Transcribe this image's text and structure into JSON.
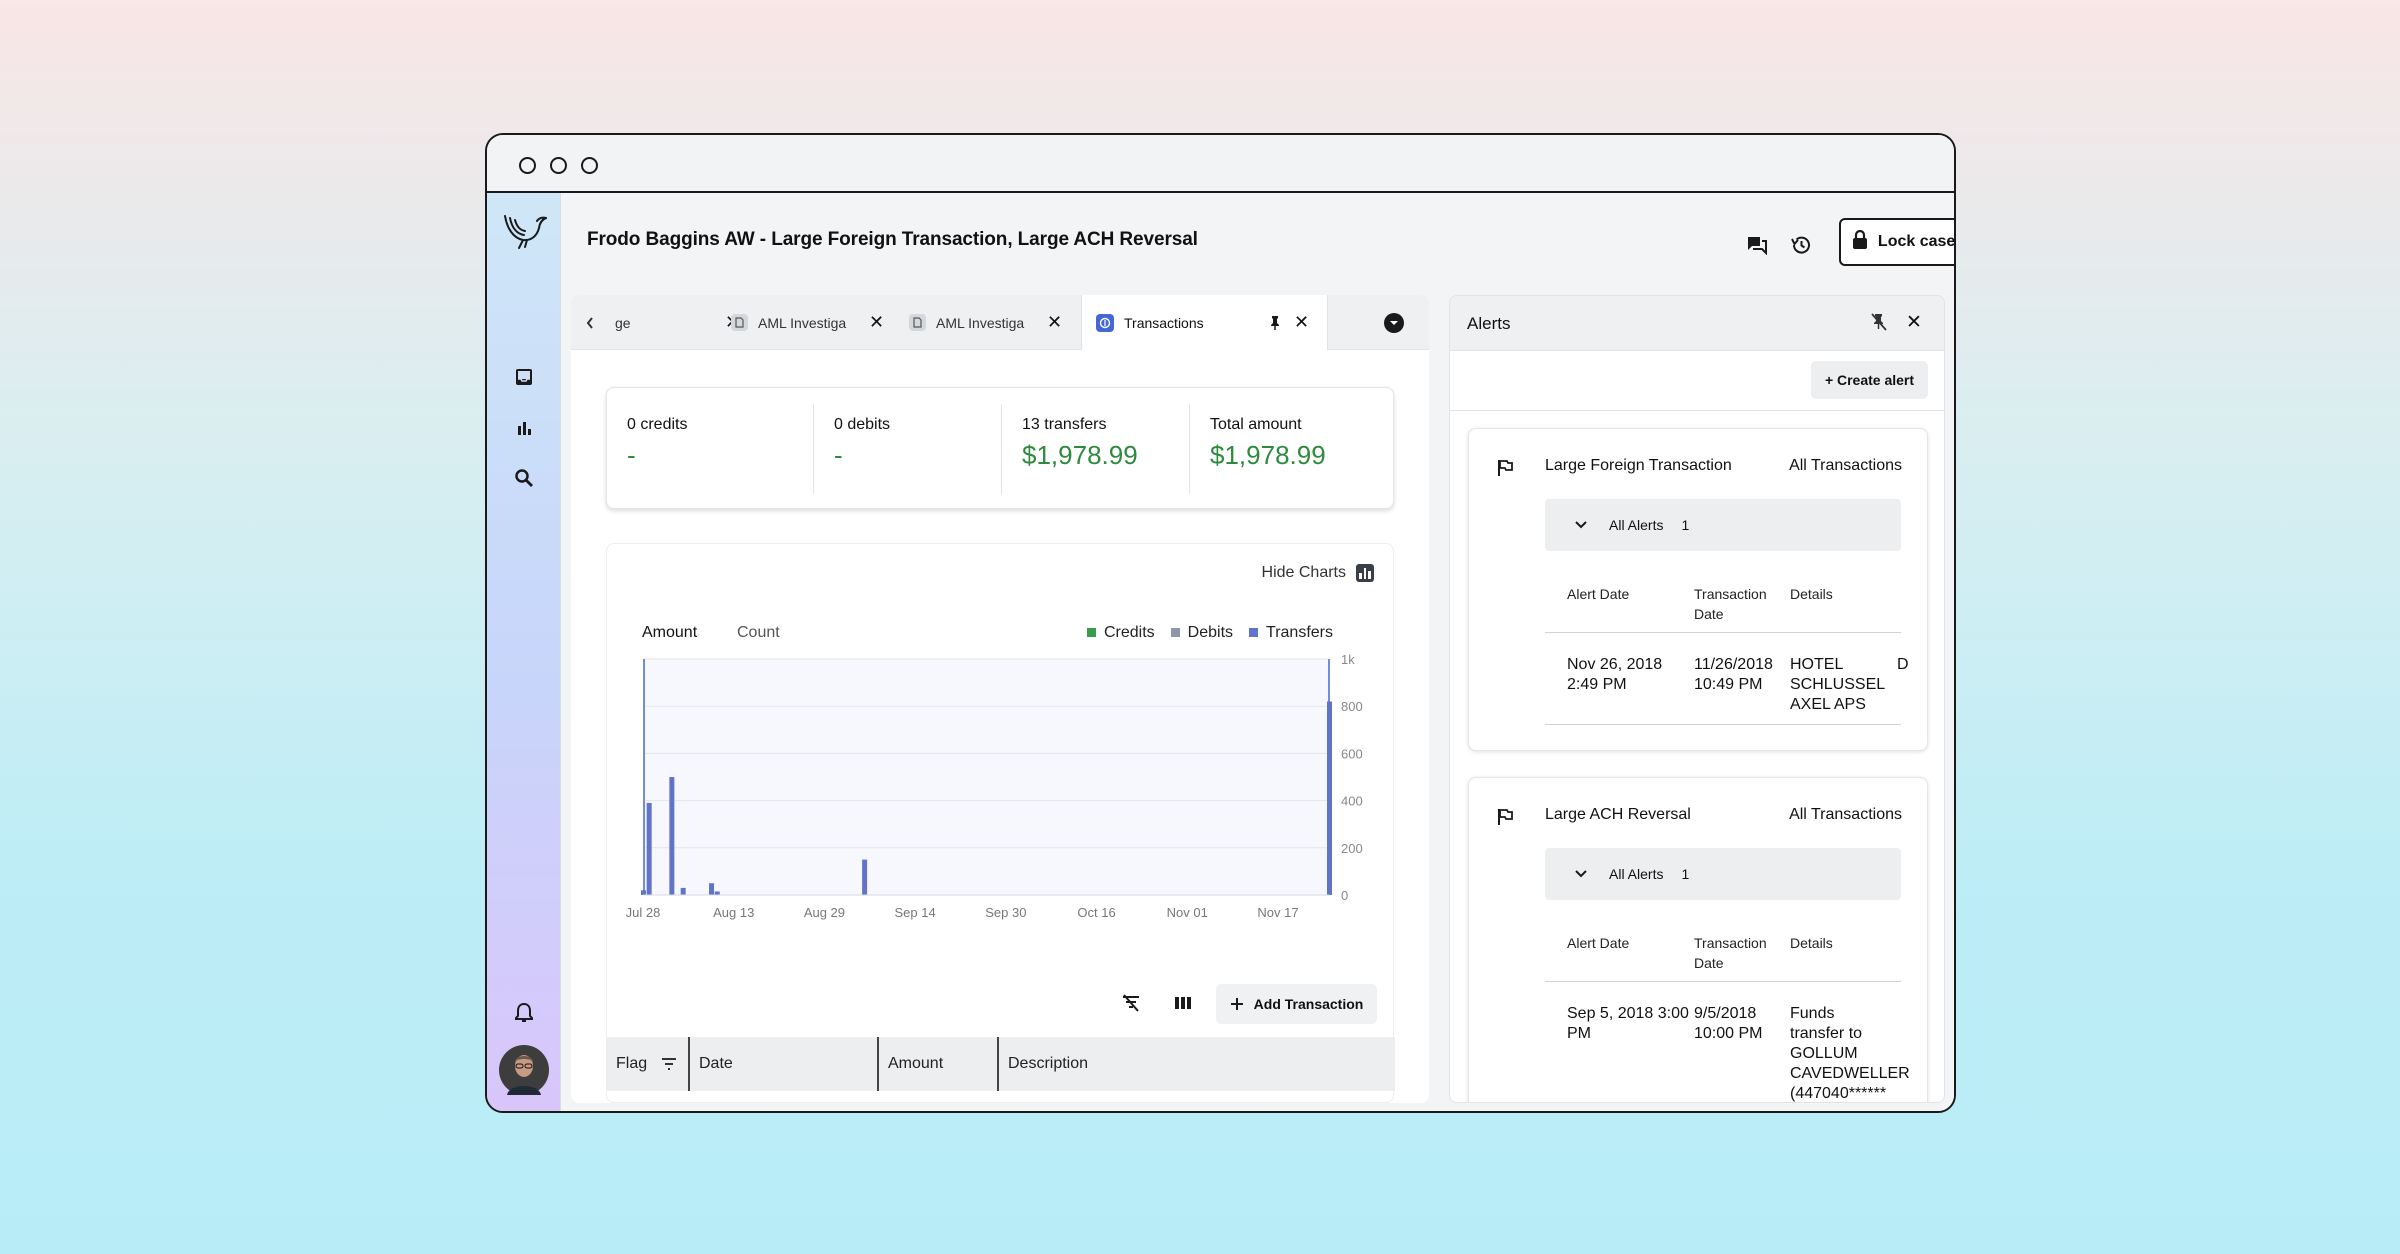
{
  "window": {
    "controls": [
      "close",
      "minimize",
      "maximize"
    ]
  },
  "sidebar": {
    "logo": "bird-logo-icon",
    "items": [
      {
        "icon": "inbox-icon",
        "name": "inbox"
      },
      {
        "icon": "bar-chart-icon",
        "name": "analytics"
      },
      {
        "icon": "search-icon",
        "name": "search"
      }
    ],
    "bottom": [
      {
        "icon": "bell-icon",
        "name": "notifications"
      },
      {
        "icon": "avatar",
        "name": "user-avatar"
      }
    ]
  },
  "header": {
    "title": "Frodo Baggins AW - Large Foreign Transaction, Large ACH Reversal",
    "lock_label": "Lock case info"
  },
  "tabs": [
    {
      "label": "ge",
      "icon": "",
      "active": false
    },
    {
      "label": "AML Investiga",
      "icon": "document-icon",
      "active": false
    },
    {
      "label": "AML Investiga",
      "icon": "document-icon",
      "active": false
    },
    {
      "label": "Transactions",
      "icon": "transactions-icon",
      "active": true
    }
  ],
  "summary": [
    {
      "label": "0 credits",
      "value": "-"
    },
    {
      "label": "0 debits",
      "value": "-"
    },
    {
      "label": "13 transfers",
      "value": "$1,978.99"
    },
    {
      "label": "Total amount",
      "value": "$1,978.99"
    }
  ],
  "chart_controls": {
    "hide_charts": "Hide Charts",
    "segments": [
      "Amount",
      "Count"
    ],
    "active_segment": "Amount"
  },
  "chart_data": {
    "type": "bar",
    "series": [
      {
        "name": "Credits",
        "color": "#3a9b4a",
        "points": []
      },
      {
        "name": "Debits",
        "color": "#8e98a6",
        "points": []
      },
      {
        "name": "Transfers",
        "color": "#6274c7",
        "points": [
          {
            "date": "Jul 28",
            "value": 20
          },
          {
            "date": "Jul 29",
            "value": 390
          },
          {
            "date": "Aug 2",
            "value": 500
          },
          {
            "date": "Aug 4",
            "value": 30
          },
          {
            "date": "Aug 9",
            "value": 50
          },
          {
            "date": "Aug 10",
            "value": 15
          },
          {
            "date": "Sep 5",
            "value": 150
          },
          {
            "date": "Nov 26",
            "value": 820
          }
        ]
      }
    ],
    "x_ticks": [
      "Jul 28",
      "Aug 13",
      "Aug 29",
      "Sep 14",
      "Sep 30",
      "Oct 16",
      "Nov 01",
      "Nov 17"
    ],
    "y_ticks": [
      "0",
      "200",
      "400",
      "600",
      "800",
      "1k"
    ],
    "ylim": [
      0,
      1000
    ],
    "xlim": [
      "Jul 28",
      "Nov 26"
    ],
    "grid": true,
    "legend": "top-right"
  },
  "table": {
    "add_label": "Add Transaction",
    "columns": [
      "Flag",
      "Date",
      "Amount",
      "Description"
    ]
  },
  "alerts": {
    "title": "Alerts",
    "create_label": "+ Create alert",
    "cards": [
      {
        "title": "Large Foreign Transaction",
        "link": "All Transactions",
        "group_label": "All Alerts",
        "group_count": "1",
        "headers": [
          "Alert Date",
          "Transaction\nDate",
          "Details"
        ],
        "row": {
          "alert_date": "Nov 26, 2018\n2:49 PM",
          "tx_date": "11/26/2018\n10:49 PM",
          "details": "HOTEL\nSCHLUSSEL\nAXEL APS",
          "extra": "D"
        }
      },
      {
        "title": "Large ACH Reversal",
        "link": "All Transactions",
        "group_label": "All Alerts",
        "group_count": "1",
        "headers": [
          "Alert Date",
          "Transaction\nDate",
          "Details"
        ],
        "row": {
          "alert_date": "Sep 5, 2018 3:00\nPM",
          "tx_date": "9/5/2018\n10:00 PM",
          "details": "Funds\ntransfer to\nGOLLUM\nCAVEDWELLER\n(447040******",
          "extra": ""
        }
      }
    ]
  }
}
